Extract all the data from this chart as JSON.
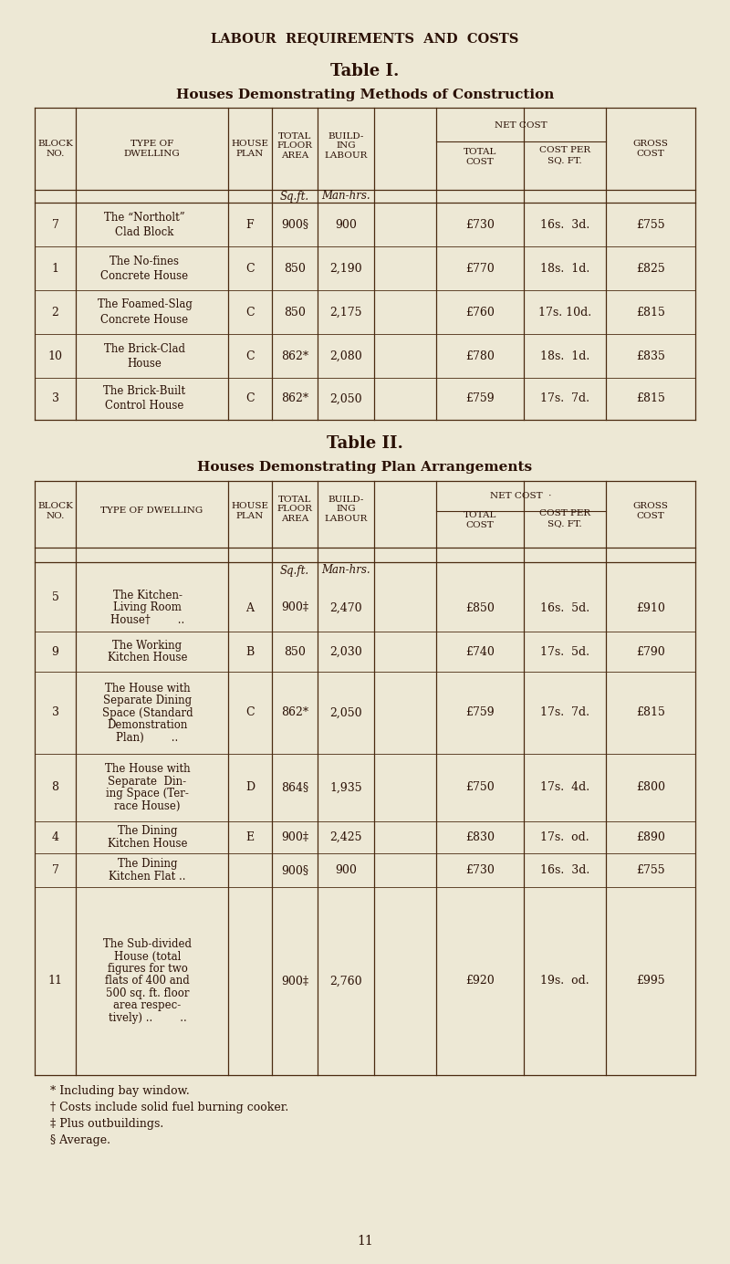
{
  "bg_color": "#ede8d5",
  "text_color": "#2a1005",
  "page_title": "LABOUR  REQUIREMENTS  AND  COSTS",
  "table1_title": "Table I.",
  "table1_subtitle": "Houses Demonstrating Methods of Construction",
  "table1_rows": [
    {
      "block": "7",
      "type_line1": "The “Northolt”",
      "type_line2": "Clad Block",
      "plan": "F",
      "area": "900§",
      "labour": "900",
      "total": "£730",
      "per_sqft": "16s.  3d.",
      "gross": "£755"
    },
    {
      "block": "1",
      "type_line1": "The No-fines",
      "type_line2": "Concrete House",
      "plan": "C",
      "area": "850",
      "labour": "2,190",
      "total": "£770",
      "per_sqft": "18s.  1d.",
      "gross": "£825"
    },
    {
      "block": "2",
      "type_line1": "The Foamed-Slag",
      "type_line2": "Concrete House",
      "plan": "C",
      "area": "850",
      "labour": "2,175",
      "total": "£760",
      "per_sqft": "17s. 10d.",
      "gross": "£815"
    },
    {
      "block": "10",
      "type_line1": "The Brick-Clad",
      "type_line2": "House",
      "plan": "C",
      "area": "862*",
      "labour": "2,080",
      "total": "£780",
      "per_sqft": "18s.  1d.",
      "gross": "£835"
    },
    {
      "block": "3",
      "type_line1": "The Brick-Built",
      "type_line2": "Control House",
      "plan": "C",
      "area": "862*",
      "labour": "2,050",
      "total": "£759",
      "per_sqft": "17s.  7d.",
      "gross": "£815"
    }
  ],
  "table2_title": "Table II.",
  "table2_subtitle": "Houses Demonstrating Plan Arrangements",
  "table2_rows": [
    {
      "block": "5",
      "type_lines": [
        "The Kitchen-",
        "Living Room",
        "House†        .."
      ],
      "plan": "A",
      "area": "900‡",
      "labour": "2,470",
      "total": "£850",
      "per_sqft": "16s.  5d.",
      "gross": "£910"
    },
    {
      "block": "9",
      "type_lines": [
        "The Working",
        "Kitchen House"
      ],
      "plan": "B",
      "area": "850",
      "labour": "2,030",
      "total": "£740",
      "per_sqft": "17s.  5d.",
      "gross": "£790"
    },
    {
      "block": "3",
      "type_lines": [
        "The House with",
        "Separate Dining",
        "Space (Standard",
        "Demonstration",
        "Plan)        .."
      ],
      "plan": "C",
      "area": "862*",
      "labour": "2,050",
      "total": "£759",
      "per_sqft": "17s.  7d.",
      "gross": "£815"
    },
    {
      "block": "8",
      "type_lines": [
        "The House with",
        "Separate  Din-",
        "ing Space (Ter-",
        "race House)"
      ],
      "plan": "D",
      "area": "864§",
      "labour": "1,935",
      "total": "£750",
      "per_sqft": "17s.  4d.",
      "gross": "£800"
    },
    {
      "block": "4",
      "type_lines": [
        "The Dining",
        "Kitchen House"
      ],
      "plan": "E",
      "area": "900‡",
      "labour": "2,425",
      "total": "£830",
      "per_sqft": "17s.  od.",
      "gross": "£890"
    },
    {
      "block": "7",
      "type_lines": [
        "The Dining",
        "Kitchen Flat .."
      ],
      "plan": "",
      "area": "900§",
      "labour": "900",
      "total": "£730",
      "per_sqft": "16s.  3d.",
      "gross": "£755"
    },
    {
      "block": "11",
      "type_lines": [
        "The Sub-divided",
        "House (total",
        "figures for two",
        "flats of 400 and",
        "500 sq. ft. floor",
        "area respec-",
        "tively) ..        .."
      ],
      "plan": "",
      "area": "900‡",
      "labour": "2,760",
      "total": "£920",
      "per_sqft": "19s.  od.",
      "gross": "£995"
    }
  ],
  "footnotes": [
    "* Including bay window.",
    "† Costs include solid fuel burning cooker.",
    "‡ Plus outbuildings.",
    "§ Average."
  ],
  "page_number": "11"
}
